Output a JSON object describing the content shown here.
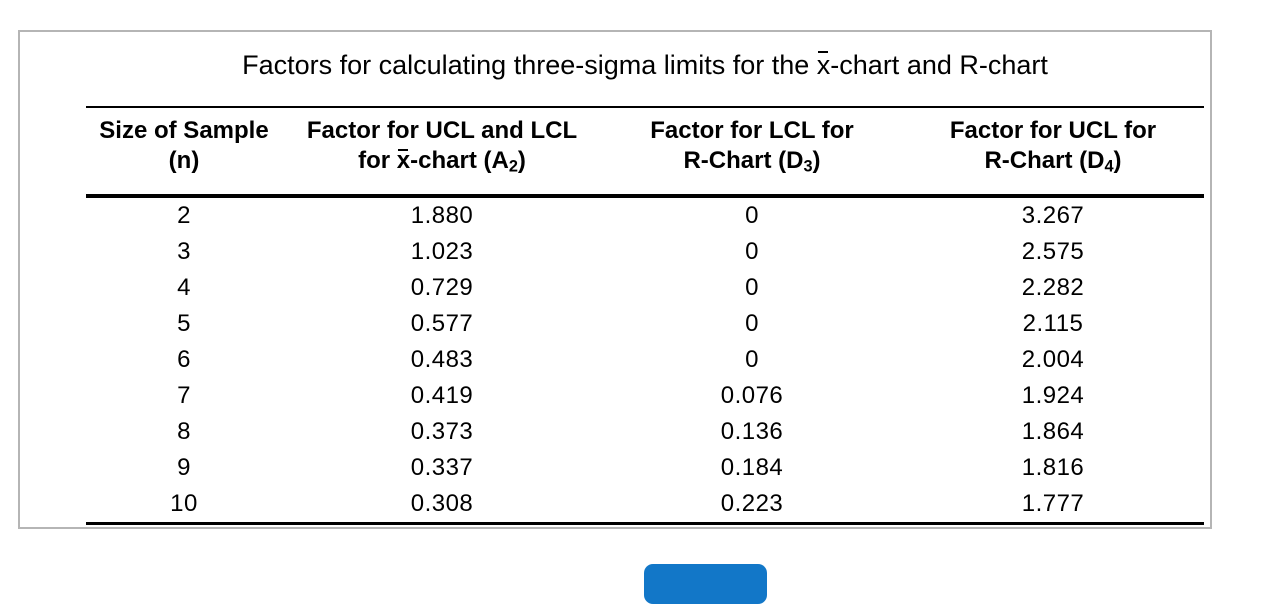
{
  "colors": {
    "accent_blue": "#1277c8",
    "panel_border": "#b5b5b5",
    "text": "#000000"
  },
  "panel": {
    "title": {
      "pre": "Factors for calculating three-sigma limits for the ",
      "xbar": "x",
      "post": "-chart and R-chart"
    }
  },
  "table": {
    "headers": {
      "col1": {
        "line1": "Size of Sample",
        "line2": "(n)"
      },
      "col2": {
        "line1": "Factor for UCL and LCL",
        "line2_pre": "for ",
        "xbar": "x",
        "line2_mid": "-chart (A",
        "sub": "2",
        "line2_post": ")"
      },
      "col3": {
        "line1": "Factor for LCL for",
        "line2_pre": "R-Chart (D",
        "sub": "3",
        "line2_post": ")"
      },
      "col4": {
        "line1": "Factor for UCL for",
        "line2_pre": "R-Chart (D",
        "sub": "4",
        "line2_post": ")"
      }
    },
    "rows": [
      {
        "n": "2",
        "a2": "1.880",
        "d3": "0",
        "d4": "3.267"
      },
      {
        "n": "3",
        "a2": "1.023",
        "d3": "0",
        "d4": "2.575"
      },
      {
        "n": "4",
        "a2": "0.729",
        "d3": "0",
        "d4": "2.282"
      },
      {
        "n": "5",
        "a2": "0.577",
        "d3": "0",
        "d4": "2.115"
      },
      {
        "n": "6",
        "a2": "0.483",
        "d3": "0",
        "d4": "2.004"
      },
      {
        "n": "7",
        "a2": "0.419",
        "d3": "0.076",
        "d4": "1.924"
      },
      {
        "n": "8",
        "a2": "0.373",
        "d3": "0.136",
        "d4": "1.864"
      },
      {
        "n": "9",
        "a2": "0.337",
        "d3": "0.184",
        "d4": "1.816"
      },
      {
        "n": "10",
        "a2": "0.308",
        "d3": "0.223",
        "d4": "1.777"
      }
    ]
  }
}
